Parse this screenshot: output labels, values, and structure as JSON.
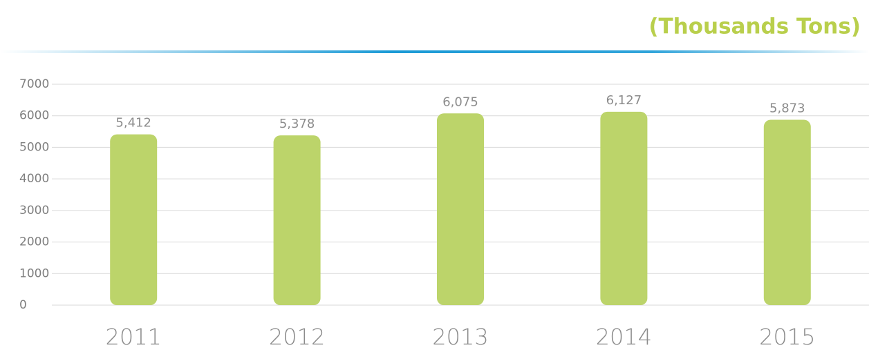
{
  "chart_data": {
    "type": "bar",
    "title": "(Thousands Tons)",
    "categories": [
      "2011",
      "2012",
      "2013",
      "2014",
      "2015"
    ],
    "values": [
      5412,
      5378,
      6075,
      6127,
      5873
    ],
    "value_labels": [
      "5,412",
      "5,378",
      "6,075",
      "6,127",
      "5,873"
    ],
    "color": "#bcd46a",
    "ylim": [
      0,
      7000
    ],
    "yticks": [
      0,
      1000,
      2000,
      3000,
      4000,
      5000,
      6000,
      7000
    ],
    "grid": true
  }
}
